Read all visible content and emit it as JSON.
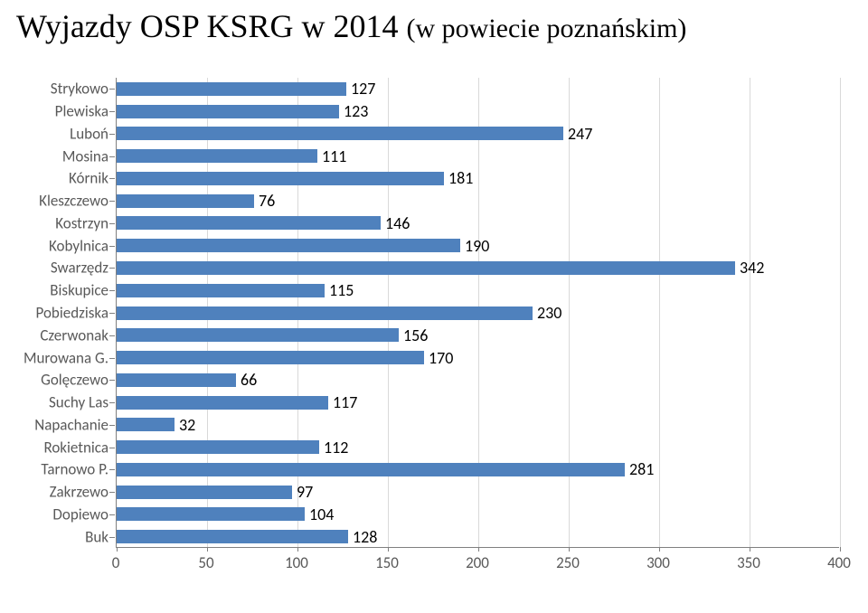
{
  "title_main": "Wyjazdy OSP KSRG w 2014 ",
  "title_sub": "(w powiecie poznańskim)",
  "chart": {
    "type": "bar-horizontal",
    "x_min": 0,
    "x_max": 400,
    "x_tick_step": 50,
    "x_ticks": [
      0,
      50,
      100,
      150,
      200,
      250,
      300,
      350,
      400
    ],
    "bar_color": "#4f81bd",
    "grid_color": "#d9d9d9",
    "axis_color": "#808080",
    "label_fontsize": 17,
    "value_fontsize": 18,
    "categories": [
      "Strykowo",
      "Plewiska",
      "Luboń",
      "Mosina",
      "Kórnik",
      "Kleszczewo",
      "Kostrzyn",
      "Kobylnica",
      "Swarzędz",
      "Biskupice",
      "Pobiedziska",
      "Czerwonak",
      "Murowana G.",
      "Golęczewo",
      "Suchy Las",
      "Napachanie",
      "Rokietnica",
      "Tarnowo P.",
      "Zakrzewo",
      "Dopiewo",
      "Buk"
    ],
    "values": [
      127,
      123,
      247,
      111,
      181,
      76,
      146,
      190,
      342,
      115,
      230,
      156,
      170,
      66,
      117,
      32,
      112,
      281,
      97,
      104,
      128
    ]
  }
}
